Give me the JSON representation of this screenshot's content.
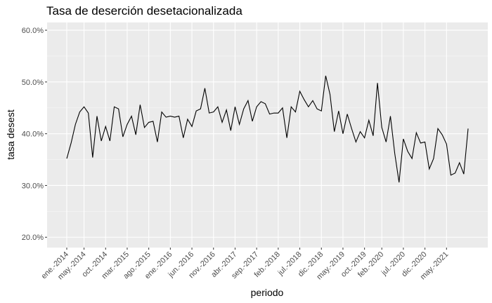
{
  "chart_data": {
    "type": "line",
    "title": "Tasa de deserción desetacionalizada",
    "xlabel": "periodo",
    "ylabel": "tasa desest",
    "ylim": [
      0.18,
      0.615
    ],
    "y_ticks": [
      0.2,
      0.3,
      0.4,
      0.5,
      0.6
    ],
    "y_tick_labels": [
      "20.0%",
      "30.0%",
      "40.0%",
      "50.0%",
      "60.0%"
    ],
    "x_start": "ene.-2014",
    "x_tick_labels": [
      "ene.-2014",
      "may.-2014",
      "oct.-2014",
      "mar.-2015",
      "ago.-2015",
      "ene.-2016",
      "jun.-2016",
      "nov.-2016",
      "abr.-2017",
      "sep.-2017",
      "feb.-2018",
      "jul.-2018",
      "dic.-2018",
      "may.-2019",
      "oct.-2019",
      "feb.-2020",
      "jul.-2020",
      "dic.-2020",
      "may.-2021"
    ],
    "x_tick_months": [
      0,
      4,
      9,
      14,
      19,
      24,
      29,
      34,
      39,
      44,
      49,
      54,
      59,
      64,
      69,
      73,
      78,
      83,
      88
    ],
    "grid": true,
    "line_color": "#000000",
    "panel_color": "#ebebeb",
    "series": [
      {
        "values": [
          0.352,
          0.382,
          0.418,
          0.442,
          0.452,
          0.44,
          0.354,
          0.434,
          0.386,
          0.414,
          0.386,
          0.452,
          0.448,
          0.394,
          0.418,
          0.434,
          0.398,
          0.456,
          0.412,
          0.422,
          0.424,
          0.384,
          0.442,
          0.432,
          0.434,
          0.432,
          0.434,
          0.392,
          0.428,
          0.414,
          0.444,
          0.448,
          0.488,
          0.44,
          0.442,
          0.452,
          0.422,
          0.446,
          0.406,
          0.452,
          0.418,
          0.448,
          0.464,
          0.424,
          0.452,
          0.462,
          0.458,
          0.438,
          0.44,
          0.44,
          0.45,
          0.392,
          0.452,
          0.442,
          0.482,
          0.466,
          0.452,
          0.464,
          0.448,
          0.444,
          0.512,
          0.476,
          0.404,
          0.444,
          0.4,
          0.438,
          0.41,
          0.384,
          0.404,
          0.392,
          0.426,
          0.396,
          0.498,
          0.412,
          0.384,
          0.434,
          0.362,
          0.306,
          0.39,
          0.366,
          0.352,
          0.402,
          0.382,
          0.384,
          0.332,
          0.352,
          0.41,
          0.398,
          0.38,
          0.32,
          0.324,
          0.344,
          0.322,
          0.41
        ]
      }
    ]
  }
}
